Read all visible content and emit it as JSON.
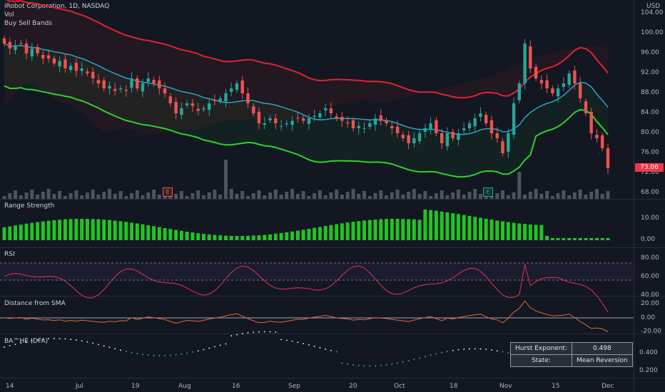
{
  "header": {
    "title": "iRobot Corporation, 1D, NASDAQ",
    "indicator_1": "Vol",
    "indicator_2": "Buy Sell Bands"
  },
  "price_axis": {
    "currency": "USD",
    "ticks": [
      "104.00",
      "100.00",
      "96.00",
      "92.00",
      "88.00",
      "84.00",
      "80.00",
      "76.00",
      "72.00",
      "68.00"
    ],
    "last_price": "73.06"
  },
  "panes": {
    "range_strength": {
      "label": "Range Strength",
      "ticks": [
        "10.00",
        "0.00"
      ]
    },
    "rsi": {
      "label": "RSI",
      "ticks": [
        "80.00",
        "60.00",
        "40.00"
      ]
    },
    "sma_distance": {
      "label": "Distance from SMA",
      "ticks": [
        "20.00",
        "0.00",
        "-20.00"
      ]
    },
    "hurst": {
      "label": "BA™HE (DFA)",
      "ticks": [
        "0.400",
        "0.200"
      ]
    }
  },
  "hurst_table": {
    "exponent_label": "Hurst Exponent:",
    "exponent_value": "0.498",
    "state_label": "State:",
    "state_value": "Mean Reversion"
  },
  "earnings_markers": [
    "E",
    "E"
  ],
  "x_axis": [
    "14",
    "Jul",
    "19",
    "Aug",
    "16",
    "Sep",
    "20",
    "Oct",
    "18",
    "Nov",
    "15",
    "Dec"
  ],
  "colors": {
    "up": "#26a69a",
    "down": "#ef5350",
    "upper_band": "#e0242f",
    "mid_band": "#27a6c4",
    "lower_band": "#2bd32b",
    "range_bars": "#22c422",
    "rsi_line": "#e2335a",
    "sma_line": "#e0683a"
  },
  "chart_data": {
    "type": "candlestick",
    "title": "iRobot Corporation, 1D, NASDAQ",
    "ylim": [
      68,
      104
    ],
    "closes": [
      98,
      97,
      97.5,
      98,
      96,
      97,
      96,
      95,
      95,
      94,
      94.5,
      93,
      93.5,
      92.5,
      93,
      92,
      91,
      90,
      89,
      89.5,
      88.5,
      89,
      88.5,
      91,
      89,
      90,
      91,
      90,
      89,
      88,
      86,
      84,
      85,
      86,
      85.5,
      84.5,
      85,
      86,
      86.5,
      87,
      88,
      89,
      90,
      88,
      86,
      84,
      82,
      82,
      83,
      82,
      81.5,
      82,
      82.5,
      83,
      82.5,
      83,
      83.5,
      84,
      85,
      84,
      83,
      82.5,
      82,
      81,
      81.5,
      81,
      82,
      83,
      82.5,
      82,
      81,
      80,
      79,
      78,
      79,
      80,
      81,
      82,
      80,
      78,
      80,
      79,
      80,
      81,
      82,
      83,
      84,
      82,
      80,
      79,
      76,
      80,
      86,
      90,
      98,
      93,
      91,
      90,
      89,
      88,
      89,
      90,
      92,
      90,
      87,
      84,
      80,
      79,
      77,
      73.06
    ],
    "upper_band": [
      null
    ],
    "indicators": [
      "Vol",
      "Buy Sell Bands",
      "Range Strength",
      "RSI",
      "Distance from SMA",
      "BA™HE (DFA)"
    ]
  }
}
